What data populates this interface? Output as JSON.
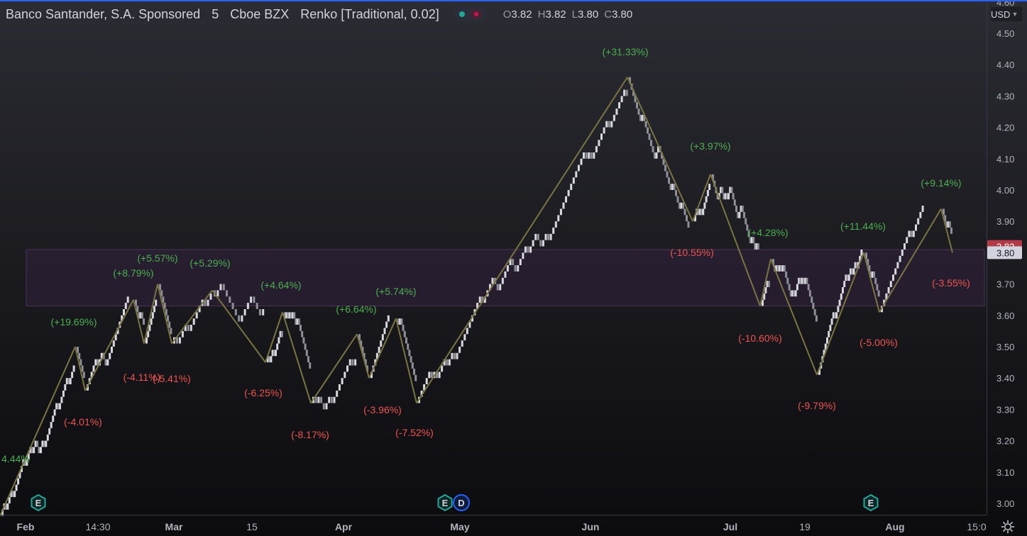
{
  "header": {
    "symbol": "Banco Santander, S.A. Sponsored",
    "interval": "5",
    "exchange": "Cboe BZX",
    "chart_type": "Renko [Traditional, 0.02]",
    "ohlc": {
      "o_label": "O",
      "o_value": "3.82",
      "h_label": "H",
      "h_value": "3.82",
      "l_label": "L",
      "l_value": "3.80",
      "c_label": "C",
      "c_value": "3.80"
    }
  },
  "currency": "USD",
  "colors": {
    "up_text": "#4caf50",
    "down_text": "#ef5350",
    "zigzag": "#7a7443",
    "bricks": "#d8d8de",
    "range_box": "#3d2a4a",
    "last_price_badge": "#b23a48",
    "current_badge": "#d1d4dc"
  },
  "icons": [
    "settings-gear-icon",
    "chevron-down-icon",
    "earnings-e-icon",
    "dividend-d-icon"
  ],
  "chart_data": {
    "type": "line",
    "y_axis": {
      "ticks": [
        "4.60",
        "4.50",
        "4.40",
        "4.30",
        "4.20",
        "4.10",
        "4.00",
        "3.90",
        "3.80",
        "3.70",
        "3.60",
        "3.50",
        "3.40",
        "3.30",
        "3.20",
        "3.10",
        "3.00"
      ],
      "ylim": [
        2.97,
        4.61
      ],
      "grid": false
    },
    "x_axis": {
      "ticks": [
        "Feb",
        "14:30",
        "Mar",
        "15",
        "Apr",
        "May",
        "Jun",
        "Jul",
        "19",
        "Aug",
        "15:0"
      ]
    },
    "price_badges": [
      {
        "value": "3.82",
        "kind": "last"
      },
      {
        "value": "3.80",
        "kind": "current"
      }
    ],
    "range_box": {
      "y_low": 3.63,
      "y_high": 3.81
    },
    "zigzag": [
      {
        "x": "start",
        "y": 2.96
      },
      {
        "x": "Feb+",
        "y": 3.5
      },
      {
        "x": "p2",
        "y": 3.36
      },
      {
        "x": "p3",
        "y": 3.65
      },
      {
        "x": "p4",
        "y": 3.51
      },
      {
        "x": "p5",
        "y": 3.7
      },
      {
        "x": "p6",
        "y": 3.51
      },
      {
        "x": "p7",
        "y": 3.68
      },
      {
        "x": "p8",
        "y": 3.45
      },
      {
        "x": "p9",
        "y": 3.61
      },
      {
        "x": "p10",
        "y": 3.32
      },
      {
        "x": "p11",
        "y": 3.54
      },
      {
        "x": "p12",
        "y": 3.4
      },
      {
        "x": "p13",
        "y": 3.59
      },
      {
        "x": "p14",
        "y": 3.32
      },
      {
        "x": "p15",
        "y": 4.36
      },
      {
        "x": "p16",
        "y": 3.9
      },
      {
        "x": "p17",
        "y": 4.05
      },
      {
        "x": "p18",
        "y": 3.63
      },
      {
        "x": "p19",
        "y": 3.78
      },
      {
        "x": "p20",
        "y": 3.41
      },
      {
        "x": "p21",
        "y": 3.8
      },
      {
        "x": "p22",
        "y": 3.61
      },
      {
        "x": "p23",
        "y": 3.94
      },
      {
        "x": "p24",
        "y": 3.8
      }
    ],
    "annotations": [
      {
        "text": "4.44%",
        "dir": "up"
      },
      {
        "text": "(+19.69%)",
        "dir": "up"
      },
      {
        "text": "(-4.01%)",
        "dir": "down"
      },
      {
        "text": "(+8.79%)",
        "dir": "up"
      },
      {
        "text": "(-4.11%)",
        "dir": "down"
      },
      {
        "text": "(+5.57%)",
        "dir": "up"
      },
      {
        "text": "(-5.41%)",
        "dir": "down"
      },
      {
        "text": "(+5.29%)",
        "dir": "up"
      },
      {
        "text": "(-6.25%)",
        "dir": "down"
      },
      {
        "text": "(+4.64%)",
        "dir": "up"
      },
      {
        "text": "(-8.17%)",
        "dir": "down"
      },
      {
        "text": "(+6.64%)",
        "dir": "up"
      },
      {
        "text": "(-3.96%)",
        "dir": "down"
      },
      {
        "text": "(+5.74%)",
        "dir": "up"
      },
      {
        "text": "(-7.52%)",
        "dir": "down"
      },
      {
        "text": "(+31.33%)",
        "dir": "up"
      },
      {
        "text": "(-10.55%)",
        "dir": "down"
      },
      {
        "text": "(+3.97%)",
        "dir": "up"
      },
      {
        "text": "(-10.60%)",
        "dir": "down"
      },
      {
        "text": "(+4.28%)",
        "dir": "up"
      },
      {
        "text": "(-9.79%)",
        "dir": "down"
      },
      {
        "text": "(+11.44%)",
        "dir": "up"
      },
      {
        "text": "(-5.00%)",
        "dir": "down"
      },
      {
        "text": "(+9.14%)",
        "dir": "up"
      },
      {
        "text": "(-3.55%)",
        "dir": "down"
      }
    ],
    "events": [
      {
        "label": "E",
        "kind": "earnings",
        "at": "Feb"
      },
      {
        "label": "E",
        "kind": "earnings",
        "at": "May"
      },
      {
        "label": "D",
        "kind": "dividend",
        "at": "May"
      },
      {
        "label": "E",
        "kind": "earnings",
        "at": "Jul/Aug"
      }
    ]
  }
}
